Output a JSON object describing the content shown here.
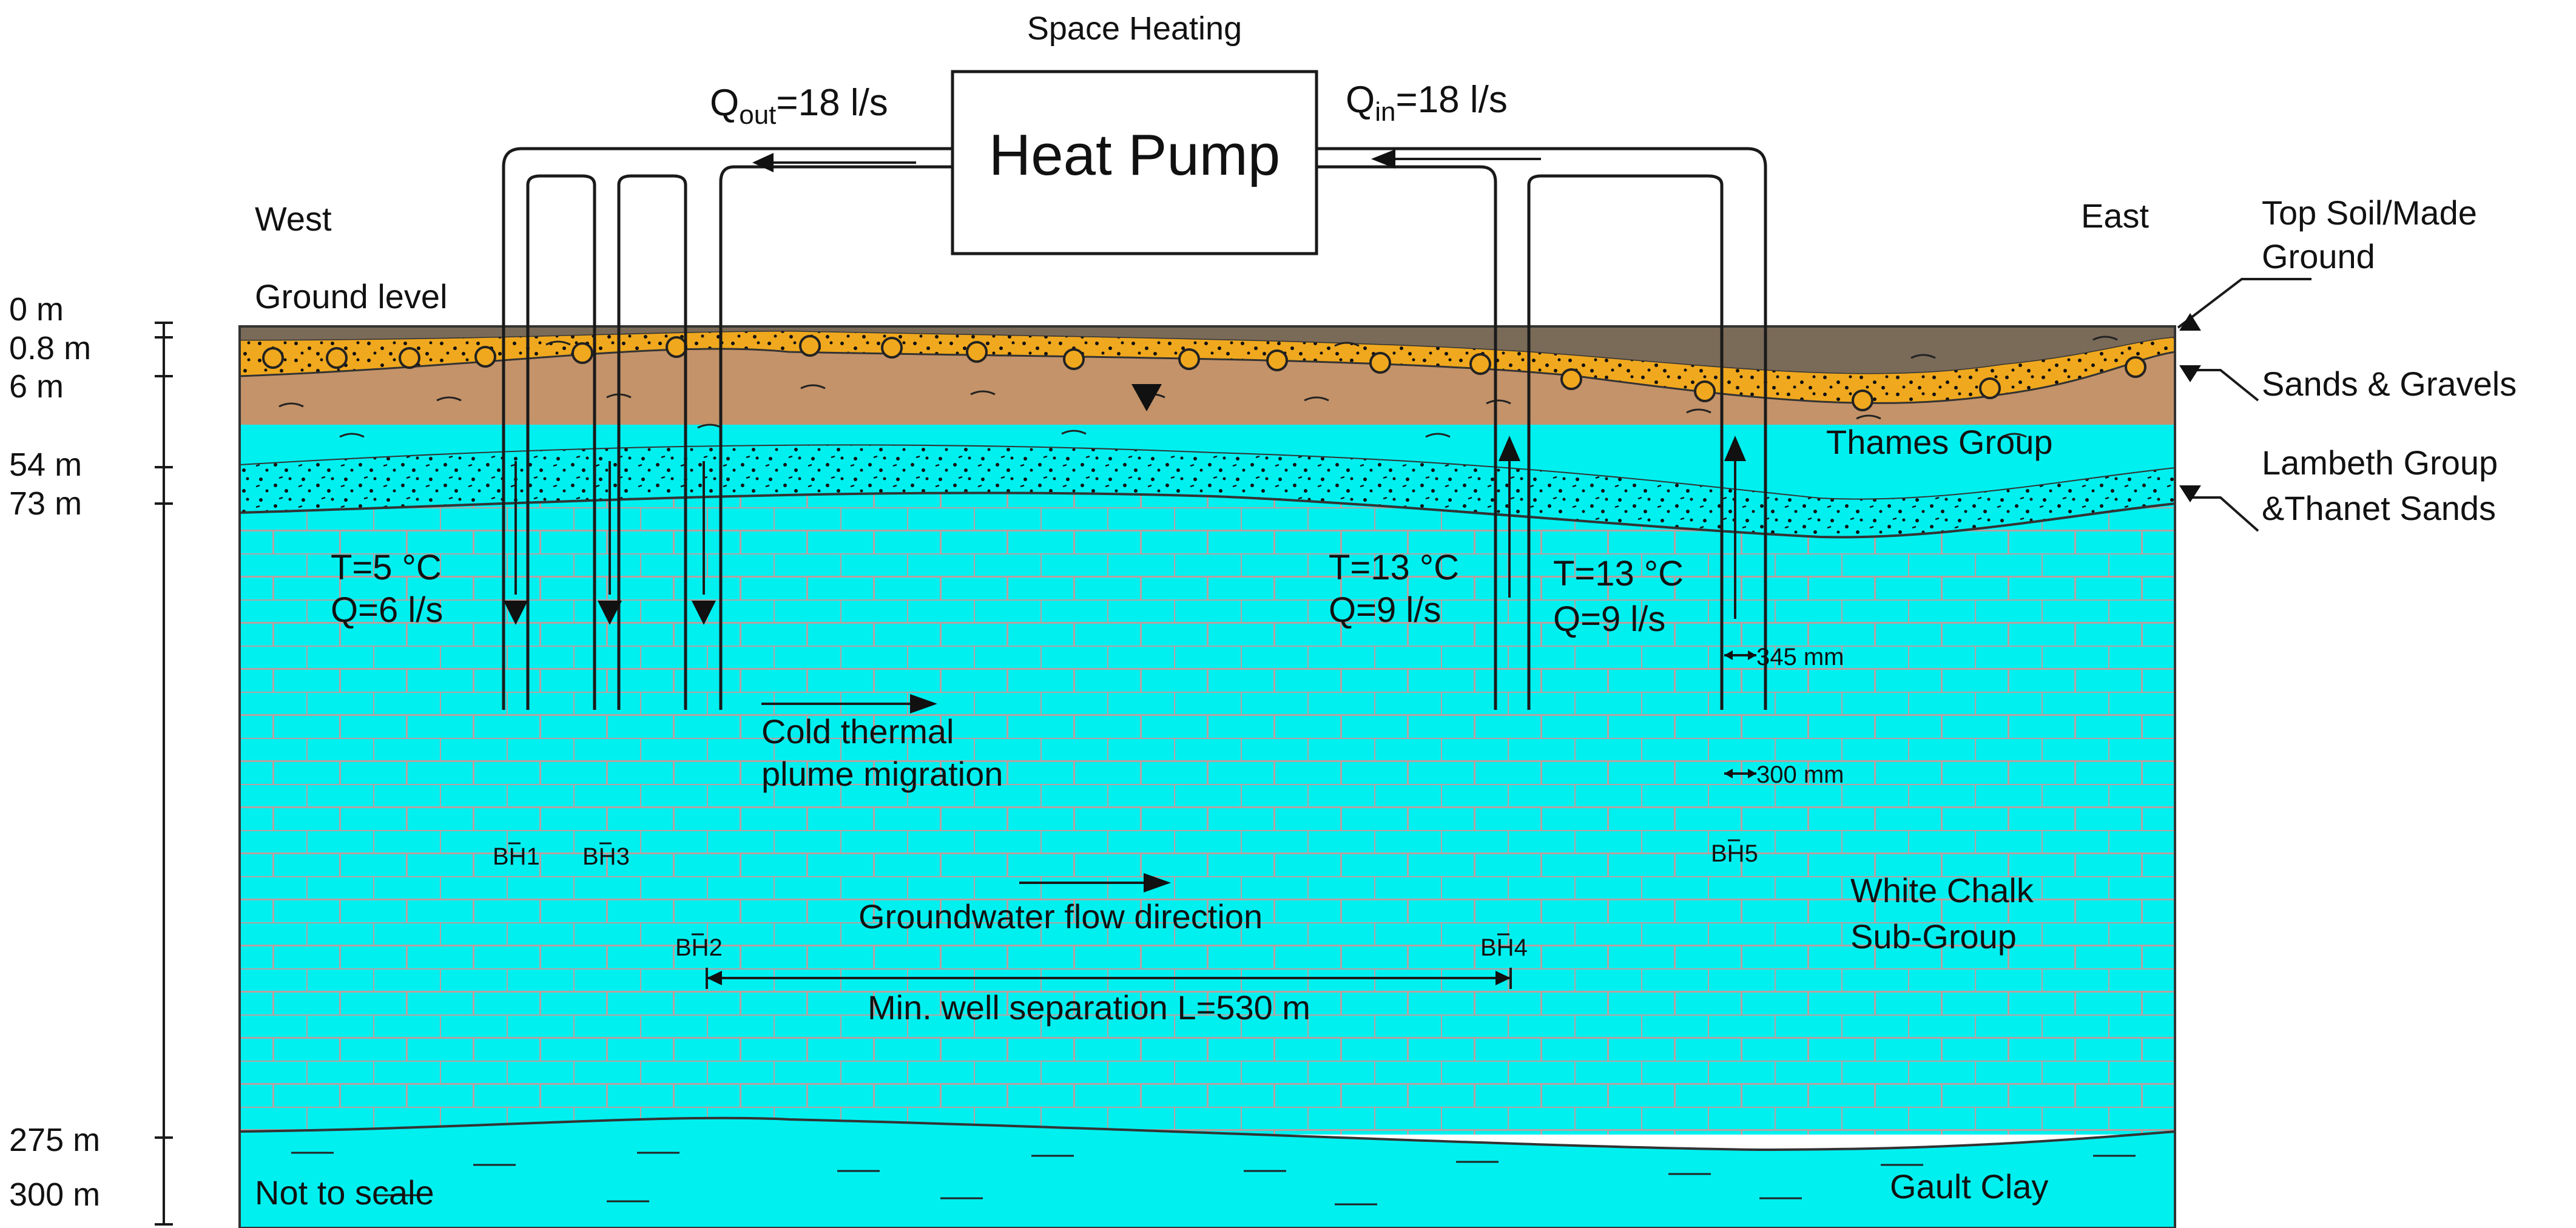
{
  "colors": {
    "top_soil": "#7a6a58",
    "sands_gravels": "#f0a81e",
    "thames_clay": "#c4936a",
    "aquifer": "#00f0f0",
    "brick_line": "#b8a0a0",
    "pipe": "#1a1a1a"
  },
  "title": "Space Heating",
  "heat_pump": "Heat Pump",
  "flows": {
    "q_out": {
      "main": "Q",
      "sub": "out",
      "rest": "=18 l/s"
    },
    "q_in": {
      "main": "Q",
      "sub": "in",
      "rest": "=18 l/s"
    }
  },
  "sides": {
    "west": "West",
    "east": "East"
  },
  "ground_level": "Ground level",
  "depths": [
    "0 m",
    "0.8 m",
    "6 m",
    "54 m",
    "73 m",
    "275 m",
    "300 m"
  ],
  "layers": {
    "top_soil": "Top Soil/Made Ground",
    "top_soil_line2": "Ground",
    "top_soil_line1": "Top Soil/Made",
    "sands_gravels": "Sands & Gravels",
    "lambeth_line1": "Lambeth Group",
    "lambeth_line2": "&Thanet Sands",
    "thames_group": "Thames Group",
    "white_chalk_line1": "White Chalk",
    "white_chalk_line2": "Sub-Group",
    "gault_clay": "Gault Clay"
  },
  "west_wells": {
    "temperature": "T=5 °C",
    "flow": "Q=6 l/s"
  },
  "east_well_a": {
    "temperature": "T=13 °C",
    "flow": "Q=9 l/s"
  },
  "east_well_b": {
    "temperature": "T=13 °C",
    "flow": "Q=9 l/s"
  },
  "dimensions": {
    "d1": "345 mm",
    "d2": "300 mm"
  },
  "plume": {
    "line1": "Cold thermal",
    "line2": "plume migration"
  },
  "groundwater": "Groundwater flow direction",
  "boreholes": [
    "BH1",
    "BH2",
    "BH3",
    "BH4",
    "BH5"
  ],
  "separation": "Min. well separation L=530 m",
  "scale_note": "Not to scale"
}
